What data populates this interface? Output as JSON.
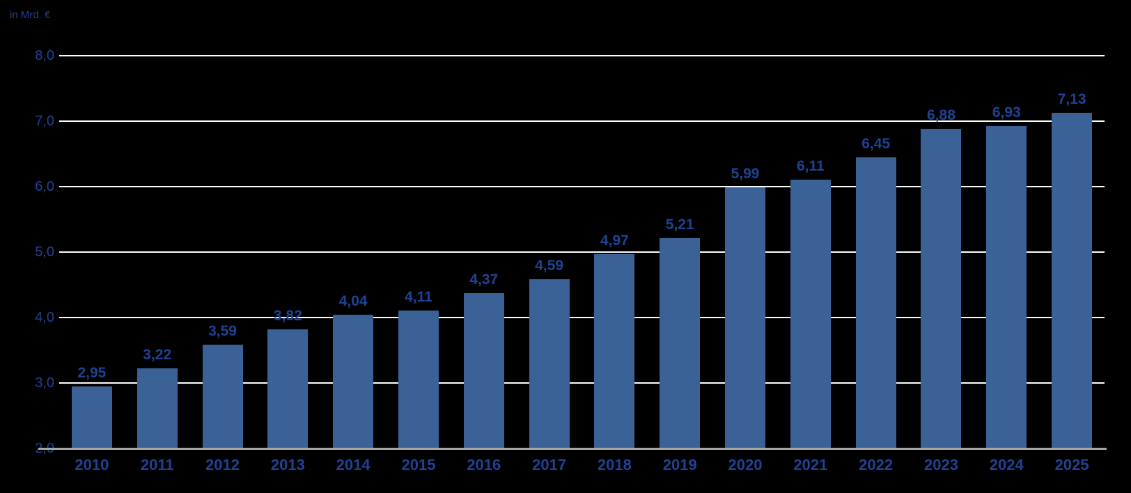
{
  "chart_data": {
    "type": "bar",
    "title": "",
    "ylabel": "in Mrd. €",
    "xlabel": "",
    "categories": [
      "2010",
      "2011",
      "2012",
      "2013",
      "2014",
      "2015",
      "2016",
      "2017",
      "2018",
      "2019",
      "2020",
      "2021",
      "2022",
      "2023",
      "2024",
      "2025"
    ],
    "values": [
      2.95,
      3.22,
      3.59,
      3.82,
      4.04,
      4.11,
      4.37,
      4.59,
      4.97,
      5.21,
      5.99,
      6.11,
      6.45,
      6.88,
      6.93,
      7.13
    ],
    "value_labels": [
      "2,95",
      "3,22",
      "3,59",
      "3,82",
      "4,04",
      "4,11",
      "4,37",
      "4,59",
      "4,97",
      "5,21",
      "5,99",
      "6,11",
      "6,45",
      "6,88",
      "6,93",
      "7,13"
    ],
    "ylim": [
      2.0,
      8.0
    ],
    "ytick_values": [
      2.0,
      3.0,
      4.0,
      5.0,
      6.0,
      7.0,
      8.0
    ],
    "ytick_labels": [
      "2,0",
      "3,0",
      "4,0",
      "5,0",
      "6,0",
      "7,0",
      "8,0"
    ],
    "grid": true,
    "legend": false,
    "colors": {
      "background": "#000000",
      "bar": "#3A6296",
      "label_text": "#1F4394",
      "unit_label_text": "#24418F",
      "gridline": "#FFFFFF",
      "axis_line": "#A6A6A6"
    }
  }
}
